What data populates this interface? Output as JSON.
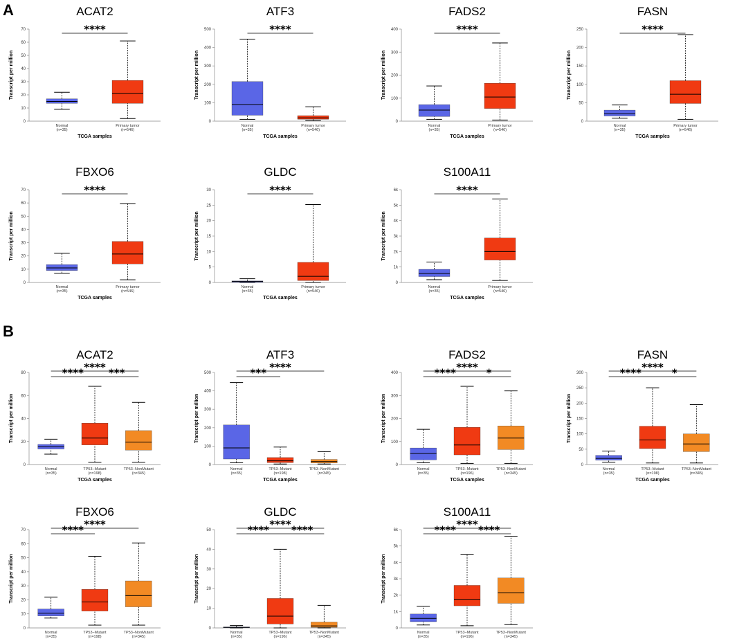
{
  "panels": [
    {
      "label": "A"
    },
    {
      "label": "B"
    }
  ],
  "colors": {
    "normal": "#5a66e6",
    "tumor": "#f03a12",
    "nonmutant": "#f28a24",
    "line": "#000000"
  },
  "chart_data": [
    {
      "type": "box",
      "panel": "A",
      "title": "ACAT2",
      "xlabel": "TCGA samples",
      "ylabel": "Transcript per million",
      "ylim": [
        0,
        70
      ],
      "yticks": [
        "0",
        "10",
        "20",
        "30",
        "40",
        "50",
        "60",
        "70"
      ],
      "categories": [
        {
          "name": "Normal",
          "n": "(n=35)"
        },
        {
          "name": "Primary tumor",
          "n": "(n=546)"
        }
      ],
      "boxes": [
        {
          "min": 9,
          "q1": 13.5,
          "median": 15,
          "q3": 17,
          "max": 22
        },
        {
          "min": 2,
          "q1": 13.5,
          "median": 21,
          "q3": 31,
          "max": 61
        }
      ],
      "significance": [
        {
          "from": 0,
          "to": 1,
          "label": "****"
        }
      ]
    },
    {
      "type": "box",
      "panel": "A",
      "title": "ATF3",
      "xlabel": "TCGA samples",
      "ylabel": "Transcript per million",
      "ylim": [
        0,
        500
      ],
      "yticks": [
        "0",
        "100",
        "200",
        "300",
        "400",
        "500"
      ],
      "categories": [
        {
          "name": "Normal",
          "n": "(n=35)"
        },
        {
          "name": "Primary tumor",
          "n": "(n=546)"
        }
      ],
      "boxes": [
        {
          "min": 10,
          "q1": 32,
          "median": 90,
          "q3": 215,
          "max": 445
        },
        {
          "min": 3,
          "q1": 10,
          "median": 18,
          "q3": 30,
          "max": 78
        }
      ],
      "significance": [
        {
          "from": 0,
          "to": 1,
          "label": "****"
        }
      ]
    },
    {
      "type": "box",
      "panel": "A",
      "title": "FADS2",
      "xlabel": "TCGA samples",
      "ylabel": "Transcript per million",
      "ylim": [
        0,
        400
      ],
      "yticks": [
        "0",
        "100",
        "200",
        "300",
        "400"
      ],
      "categories": [
        {
          "name": "Normal",
          "n": "(n=35)"
        },
        {
          "name": "Primary tumor",
          "n": "(n=546)"
        }
      ],
      "boxes": [
        {
          "min": 8,
          "q1": 20,
          "median": 48,
          "q3": 72,
          "max": 153
        },
        {
          "min": 5,
          "q1": 55,
          "median": 105,
          "q3": 165,
          "max": 340
        }
      ],
      "significance": [
        {
          "from": 0,
          "to": 1,
          "label": "****"
        }
      ]
    },
    {
      "type": "box",
      "panel": "A",
      "title": "FASN",
      "xlabel": "TCGA samples",
      "ylabel": "Transcript per million",
      "ylim": [
        0,
        250
      ],
      "yticks": [
        "0",
        "50",
        "100",
        "150",
        "200",
        "250"
      ],
      "categories": [
        {
          "name": "Normal",
          "n": "(n=35)"
        },
        {
          "name": "Primary tumor",
          "n": "(n=546)"
        }
      ],
      "boxes": [
        {
          "min": 8,
          "q1": 14,
          "median": 20,
          "q3": 30,
          "max": 44
        },
        {
          "min": 5,
          "q1": 48,
          "median": 73,
          "q3": 110,
          "max": 235
        }
      ],
      "significance": [
        {
          "from": 0,
          "to": 1,
          "label": "****"
        }
      ]
    },
    {
      "type": "box",
      "panel": "A",
      "title": "FBXO6",
      "xlabel": "TCGA samples",
      "ylabel": "Transcript per million",
      "ylim": [
        0,
        70
      ],
      "yticks": [
        "0",
        "10",
        "20",
        "30",
        "40",
        "50",
        "60",
        "70"
      ],
      "categories": [
        {
          "name": "Normal",
          "n": "(n=35)"
        },
        {
          "name": "Primary tumor",
          "n": "(n=546)"
        }
      ],
      "boxes": [
        {
          "min": 7,
          "q1": 9,
          "median": 11,
          "q3": 13.5,
          "max": 22
        },
        {
          "min": 2,
          "q1": 14,
          "median": 21.5,
          "q3": 31,
          "max": 59.5
        }
      ],
      "significance": [
        {
          "from": 0,
          "to": 1,
          "label": "****"
        }
      ]
    },
    {
      "type": "box",
      "panel": "A",
      "title": "GLDC",
      "xlabel": "TCGA samples",
      "ylabel": "Transcript per million",
      "ylim": [
        0,
        30
      ],
      "yticks": [
        "0",
        "5",
        "10",
        "15",
        "20",
        "25",
        "30"
      ],
      "categories": [
        {
          "name": "Normal",
          "n": "(n=35)"
        },
        {
          "name": "Primary tumor",
          "n": "(n=546)"
        }
      ],
      "boxes": [
        {
          "min": 0,
          "q1": 0.1,
          "median": 0.3,
          "q3": 0.5,
          "max": 1.2
        },
        {
          "min": 0,
          "q1": 0.6,
          "median": 2,
          "q3": 6.5,
          "max": 25.2
        }
      ],
      "significance": [
        {
          "from": 0,
          "to": 1,
          "label": "****"
        }
      ]
    },
    {
      "type": "box",
      "panel": "A",
      "title": "S100A11",
      "xlabel": "TCGA samples",
      "ylabel": "Transcript per million",
      "ylim": [
        0,
        6000
      ],
      "yticks": [
        "0",
        "1k",
        "2k",
        "3k",
        "4k",
        "5k",
        "6k"
      ],
      "categories": [
        {
          "name": "Normal",
          "n": "(n=35)"
        },
        {
          "name": "Primary tumor",
          "n": "(n=546)"
        }
      ],
      "boxes": [
        {
          "min": 180,
          "q1": 380,
          "median": 580,
          "q3": 850,
          "max": 1320
        },
        {
          "min": 130,
          "q1": 1450,
          "median": 2000,
          "q3": 2880,
          "max": 5400
        }
      ],
      "significance": [
        {
          "from": 0,
          "to": 1,
          "label": "****"
        }
      ]
    },
    {
      "type": "box",
      "panel": "B",
      "title": "ACAT2",
      "xlabel": "TCGA samples",
      "ylabel": "Transcript per million",
      "ylim": [
        0,
        80
      ],
      "yticks": [
        "0",
        "20",
        "40",
        "60",
        "80"
      ],
      "categories": [
        {
          "name": "Normal",
          "n": "(n=35)"
        },
        {
          "name": "TP53−Mutant",
          "n": "(n=198)"
        },
        {
          "name": "TP53−NonMutant",
          "n": "(n=345)"
        }
      ],
      "boxes": [
        {
          "min": 9,
          "q1": 13.5,
          "median": 15.5,
          "q3": 17.5,
          "max": 22
        },
        {
          "min": 2,
          "q1": 17,
          "median": 23,
          "q3": 36,
          "max": 68
        },
        {
          "min": 2,
          "q1": 12.5,
          "median": 19.5,
          "q3": 29.5,
          "max": 54
        }
      ],
      "significance": [
        {
          "from": 0,
          "to": 1,
          "label": "****",
          "level": 0
        },
        {
          "from": 1,
          "to": 2,
          "label": "***",
          "level": 0
        },
        {
          "from": 0,
          "to": 2,
          "label": "****",
          "level": 1
        }
      ]
    },
    {
      "type": "box",
      "panel": "B",
      "title": "ATF3",
      "xlabel": "TCGA samples",
      "ylabel": "Transcript per million",
      "ylim": [
        0,
        500
      ],
      "yticks": [
        "0",
        "100",
        "200",
        "300",
        "400",
        "500"
      ],
      "categories": [
        {
          "name": "Normal",
          "n": "(n=35)"
        },
        {
          "name": "TP53−Mutant",
          "n": "(n=198)"
        },
        {
          "name": "TP53−NonMutant",
          "n": "(n=345)"
        }
      ],
      "boxes": [
        {
          "min": 10,
          "q1": 30,
          "median": 90,
          "q3": 215,
          "max": 445
        },
        {
          "min": 3,
          "q1": 10,
          "median": 20,
          "q3": 38,
          "max": 95
        },
        {
          "min": 3,
          "q1": 8,
          "median": 16,
          "q3": 28,
          "max": 70
        }
      ],
      "significance": [
        {
          "from": 0,
          "to": 1,
          "label": "***",
          "level": 0
        },
        {
          "from": 0,
          "to": 2,
          "label": "****",
          "level": 1
        }
      ]
    },
    {
      "type": "box",
      "panel": "B",
      "title": "FADS2",
      "xlabel": "TCGA samples",
      "ylabel": "Transcript per million",
      "ylim": [
        0,
        400
      ],
      "yticks": [
        "0",
        "100",
        "200",
        "300",
        "400"
      ],
      "categories": [
        {
          "name": "Normal",
          "n": "(n=35)"
        },
        {
          "name": "TP53−Mutant",
          "n": "(n=196)"
        },
        {
          "name": "TP53−NonMutant",
          "n": "(n=345)"
        }
      ],
      "boxes": [
        {
          "min": 8,
          "q1": 20,
          "median": 48,
          "q3": 72,
          "max": 153
        },
        {
          "min": 5,
          "q1": 42,
          "median": 85,
          "q3": 162,
          "max": 340
        },
        {
          "min": 5,
          "q1": 65,
          "median": 115,
          "q3": 168,
          "max": 320
        }
      ],
      "significance": [
        {
          "from": 0,
          "to": 1,
          "label": "****",
          "level": 0
        },
        {
          "from": 1,
          "to": 2,
          "label": "*",
          "level": 0
        },
        {
          "from": 0,
          "to": 2,
          "label": "****",
          "level": 1
        }
      ]
    },
    {
      "type": "box",
      "panel": "B",
      "title": "FASN",
      "xlabel": "TCGA samples",
      "ylabel": "Transcript per million",
      "ylim": [
        0,
        300
      ],
      "yticks": [
        "0",
        "50",
        "100",
        "150",
        "200",
        "250",
        "300"
      ],
      "categories": [
        {
          "name": "Normal",
          "n": "(n=35)"
        },
        {
          "name": "TP53−Mutant",
          "n": "(n=198)"
        },
        {
          "name": "TP53−NonMutant",
          "n": "(n=345)"
        }
      ],
      "boxes": [
        {
          "min": 8,
          "q1": 14,
          "median": 20,
          "q3": 30,
          "max": 44
        },
        {
          "min": 5,
          "q1": 52,
          "median": 80,
          "q3": 125,
          "max": 250
        },
        {
          "min": 5,
          "q1": 42,
          "median": 67,
          "q3": 100,
          "max": 195
        }
      ],
      "significance": [
        {
          "from": 0,
          "to": 1,
          "label": "****",
          "level": 0
        },
        {
          "from": 1,
          "to": 2,
          "label": "*",
          "level": 0
        },
        {
          "from": 0,
          "to": 2,
          "label": "****",
          "level": 1
        }
      ]
    },
    {
      "type": "box",
      "panel": "B",
      "title": "FBXO6",
      "xlabel": "TCGA samples",
      "ylabel": "Transcript per million",
      "ylim": [
        0,
        70
      ],
      "yticks": [
        "0",
        "10",
        "20",
        "30",
        "40",
        "50",
        "60",
        "70"
      ],
      "categories": [
        {
          "name": "Normal",
          "n": "(n=35)"
        },
        {
          "name": "TP53−Mutant",
          "n": "(n=198)"
        },
        {
          "name": "TP53−NonMutant",
          "n": "(n=345)"
        }
      ],
      "boxes": [
        {
          "min": 7,
          "q1": 8.5,
          "median": 10.5,
          "q3": 13.5,
          "max": 22
        },
        {
          "min": 2,
          "q1": 12,
          "median": 18.5,
          "q3": 27.5,
          "max": 51
        },
        {
          "min": 2,
          "q1": 15,
          "median": 23,
          "q3": 33.5,
          "max": 60.5
        }
      ],
      "significance": [
        {
          "from": 0,
          "to": 1,
          "label": "****",
          "level": 0
        },
        {
          "from": 0,
          "to": 2,
          "label": "****",
          "level": 1
        }
      ]
    },
    {
      "type": "box",
      "panel": "B",
      "title": "GLDC",
      "xlabel": "TCGA samples",
      "ylabel": "Transcript per million",
      "ylim": [
        0,
        50
      ],
      "yticks": [
        "0",
        "10",
        "20",
        "30",
        "40",
        "50"
      ],
      "categories": [
        {
          "name": "Normal",
          "n": "(n=35)"
        },
        {
          "name": "TP53−Mutant",
          "n": "(n=196)"
        },
        {
          "name": "TP53−NonMutant",
          "n": "(n=345)"
        }
      ],
      "boxes": [
        {
          "min": 0,
          "q1": 0.1,
          "median": 0.3,
          "q3": 0.5,
          "max": 1.2
        },
        {
          "min": 0,
          "q1": 2,
          "median": 6,
          "q3": 15,
          "max": 40
        },
        {
          "min": 0,
          "q1": 0.3,
          "median": 1,
          "q3": 3,
          "max": 11.5
        }
      ],
      "significance": [
        {
          "from": 0,
          "to": 1,
          "label": "****",
          "level": 0
        },
        {
          "from": 1,
          "to": 2,
          "label": "****",
          "level": 0
        },
        {
          "from": 0,
          "to": 2,
          "label": "****",
          "level": 1
        }
      ]
    },
    {
      "type": "box",
      "panel": "B",
      "title": "S100A11",
      "xlabel": "TCGA samples",
      "ylabel": "Transcript per million",
      "ylim": [
        0,
        6000
      ],
      "yticks": [
        "0",
        "1k",
        "2k",
        "3k",
        "4k",
        "5k",
        "6k"
      ],
      "categories": [
        {
          "name": "Normal",
          "n": "(n=35)"
        },
        {
          "name": "TP53−Mutant",
          "n": "(n=196)"
        },
        {
          "name": "TP53−NonMutant",
          "n": "(n=345)"
        }
      ],
      "boxes": [
        {
          "min": 180,
          "q1": 380,
          "median": 580,
          "q3": 850,
          "max": 1320
        },
        {
          "min": 130,
          "q1": 1350,
          "median": 1750,
          "q3": 2600,
          "max": 4500
        },
        {
          "min": 200,
          "q1": 1500,
          "median": 2150,
          "q3": 3050,
          "max": 5600
        }
      ],
      "significance": [
        {
          "from": 0,
          "to": 1,
          "label": "****",
          "level": 0
        },
        {
          "from": 1,
          "to": 2,
          "label": "****",
          "level": 0
        },
        {
          "from": 0,
          "to": 2,
          "label": "****",
          "level": 1
        }
      ]
    }
  ]
}
